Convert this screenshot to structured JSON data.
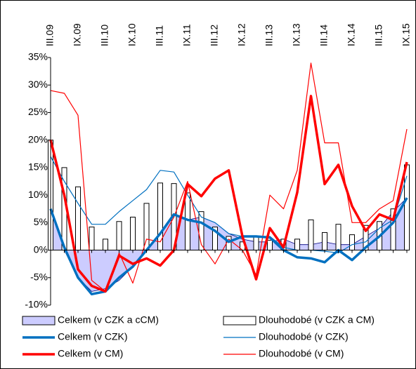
{
  "chart_data": {
    "type": "combo",
    "categories": [
      "III.09",
      null,
      "IX.09",
      null,
      "III.10",
      null,
      "IX.10",
      null,
      "III.11",
      null,
      "IX.11",
      null,
      "III.12",
      null,
      "IX.12",
      null,
      "III.13",
      null,
      "IX.13",
      null,
      "III.14",
      null,
      "IX.14",
      null,
      "III.15",
      null,
      "IX.15"
    ],
    "ylim": [
      -10,
      35
    ],
    "yticks": [
      {
        "value": -10,
        "label": "-10%"
      },
      {
        "value": -5,
        "label": "-5%"
      },
      {
        "value": 0,
        "label": "0%"
      },
      {
        "value": 5,
        "label": "5%"
      },
      {
        "value": 10,
        "label": "10%"
      },
      {
        "value": 15,
        "label": "15%"
      },
      {
        "value": 20,
        "label": "20%"
      },
      {
        "value": 25,
        "label": "25%"
      },
      {
        "value": 30,
        "label": "30%"
      },
      {
        "value": 35,
        "label": "35%"
      }
    ],
    "grid": false,
    "series": [
      {
        "name": "Celkem (v CZK a cCM)",
        "style": "area",
        "color": "#ccccff",
        "values": [
          8,
          0,
          -5,
          -7.5,
          -7,
          -5.5,
          -3,
          0,
          3,
          6.5,
          5.5,
          6,
          5,
          3,
          2,
          1.5,
          1.5,
          2,
          1,
          1,
          1.5,
          1,
          1,
          2.5,
          4,
          7,
          9.5
        ]
      },
      {
        "name": "Dlouhodobé (v CZK a CM)",
        "style": "bar",
        "color": "#ffffff",
        "values": [
          20,
          15,
          11.5,
          4.2,
          2,
          5.2,
          6,
          8.5,
          12.2,
          12.1,
          10.4,
          7,
          4.2,
          2.5,
          1.5,
          2.5,
          1.8,
          2,
          2,
          5.5,
          3.2,
          4.7,
          2.8,
          4.5,
          5.2,
          7.5,
          15.5
        ]
      },
      {
        "name": "Celkem (v CZK)",
        "style": "line",
        "width": 3.5,
        "color": "#0070c0",
        "values": [
          7.5,
          0.5,
          -5,
          -8,
          -7.5,
          -5,
          -3,
          0,
          3,
          6.5,
          5.5,
          5,
          3.5,
          1.5,
          2.5,
          2.5,
          2.3,
          0,
          -1.3,
          -1.5,
          -2.2,
          0,
          -1.8,
          0.5,
          2.5,
          5,
          9.5
        ]
      },
      {
        "name": "Dlouhodobé (v CZK)",
        "style": "line",
        "width": 1.2,
        "color": "#0070c0",
        "values": [
          17,
          12.5,
          8.5,
          4.7,
          4.7,
          7,
          9,
          11,
          14.5,
          14.2,
          10,
          6,
          5,
          3,
          2.5,
          2.5,
          2.5,
          0.5,
          0,
          0,
          -0.2,
          -0.5,
          1,
          1.5,
          4,
          5.5,
          13.5
        ]
      },
      {
        "name": "Celkem (v CM)",
        "style": "line",
        "width": 3.5,
        "color": "#ff0000",
        "values": [
          20,
          10,
          -3.5,
          -6.5,
          -7.5,
          -1,
          -2.5,
          -1.5,
          -2.8,
          0,
          12,
          9.8,
          13,
          14.5,
          2.5,
          -5.3,
          4,
          0.5,
          10.5,
          28,
          12,
          15.5,
          8,
          3.5,
          6.5,
          5.5,
          16
        ]
      },
      {
        "name": "Dlouhodobé (v CM)",
        "style": "line",
        "width": 1.2,
        "color": "#ff0000",
        "values": [
          29,
          28.5,
          24.5,
          -5.5,
          -7.5,
          -0.5,
          -6,
          2,
          1.5,
          6,
          12.5,
          1,
          -2.5,
          2,
          0,
          -4.5,
          10,
          7.5,
          14.5,
          34,
          19.5,
          19.5,
          5,
          5,
          7.5,
          9,
          22
        ]
      }
    ]
  }
}
